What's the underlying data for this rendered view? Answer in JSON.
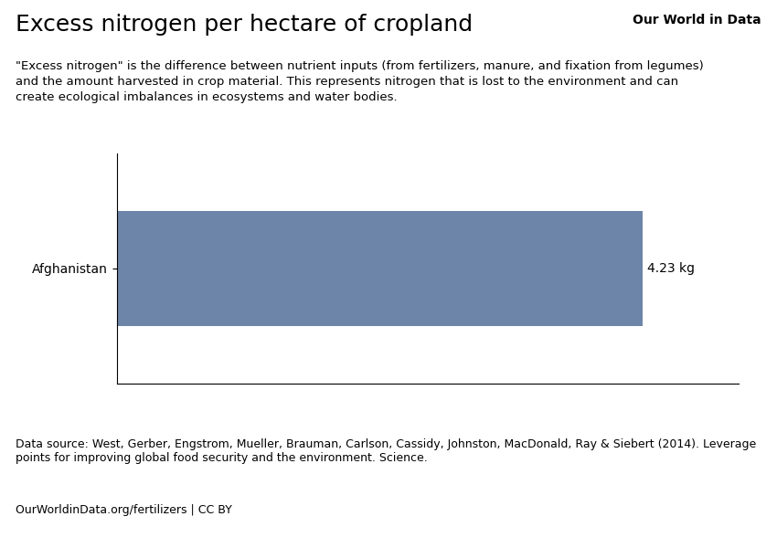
{
  "chart_data": {
    "type": "bar",
    "orientation": "horizontal",
    "title": "Excess nitrogen per hectare of cropland",
    "subtitle": "\"Excess nitrogen\" is the difference between nutrient inputs (from fertilizers, manure, and fixation from legumes)\nand the amount harvested in crop material. This represents nitrogen that is lost to the environment and can\ncreate ecological imbalances in ecosystems and water bodies.",
    "categories": [
      "Afghanistan"
    ],
    "values": [
      4.23
    ],
    "value_labels": [
      "4.23 kg"
    ],
    "data_labels": true,
    "color": "#6d85a8",
    "xlim": [
      0,
      5
    ],
    "tick_labels": "y",
    "grid": false,
    "annotations": [
      "Our World in Data",
      "Data source: West, Gerber, Engstrom, Mueller, Brauman, Carlson, Cassidy, Johnston, MacDonald, Ray & Siebert (2014). Leverage points for improving global food security and the environment. Science.",
      "OurWorldinData.org/fertilizers | CC BY"
    ]
  }
}
